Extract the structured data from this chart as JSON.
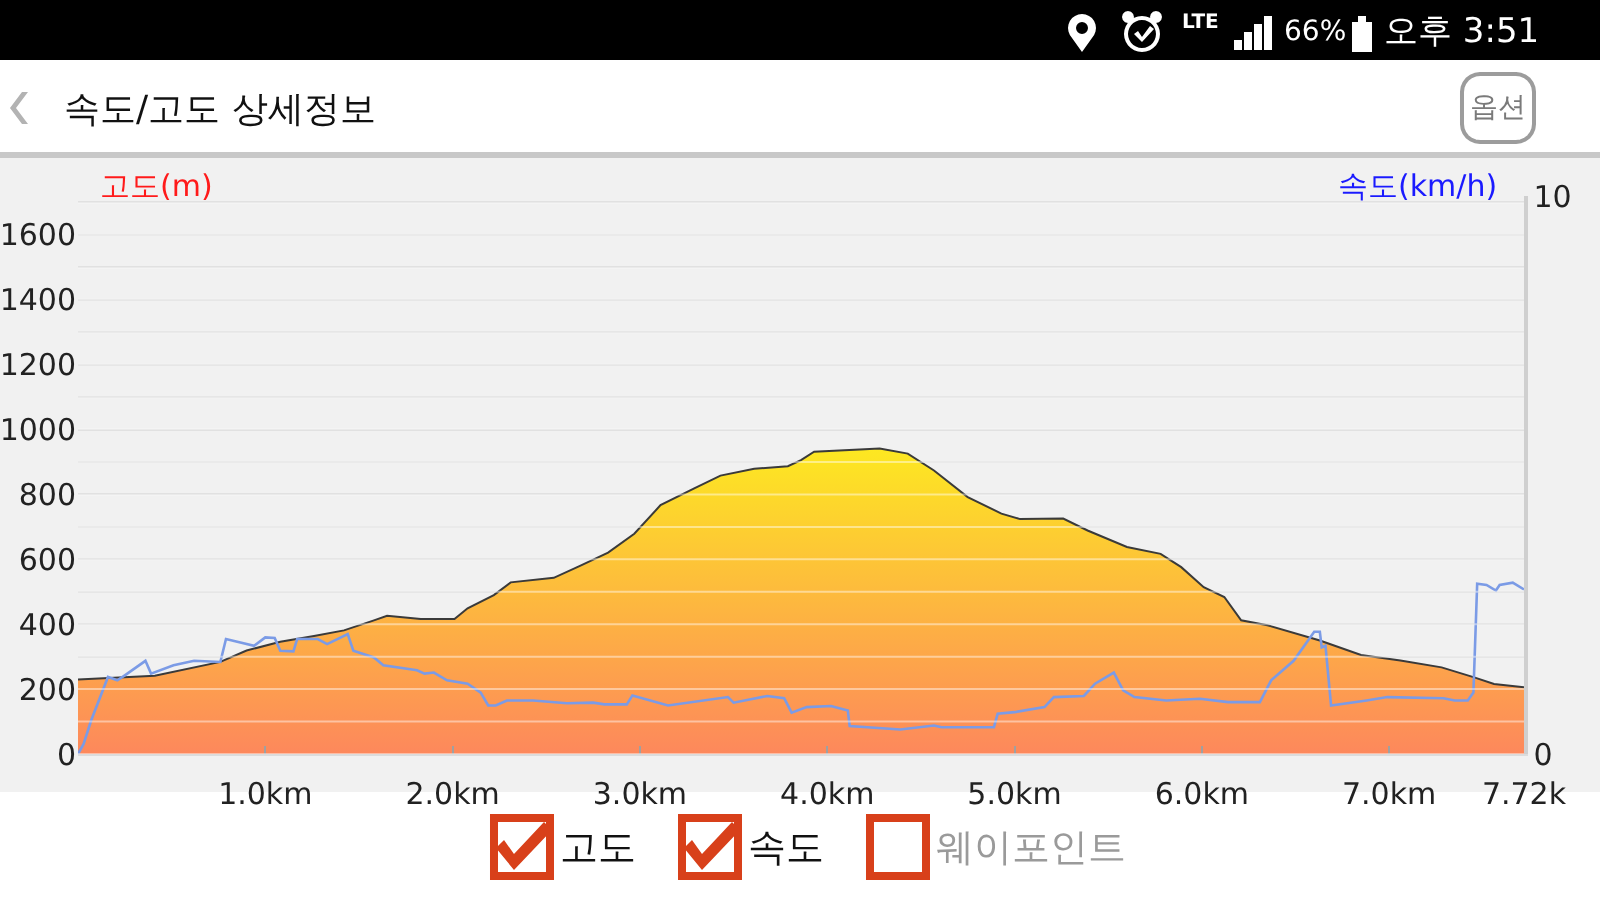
{
  "chart_data": {
    "type": "area",
    "title": "속도/고도 상세정보",
    "ylabel": "고도(m)",
    "y2label": "속도(km/h)",
    "annotations": [
      "LTE",
      "66%",
      "오후 3:51",
      "옵션",
      "고도",
      "속도",
      "웨이포인트"
    ],
    "series": [
      {
        "color": "#fdb846",
        "x": [
          0,
          0.41,
          0.76,
          0.9,
          1.08,
          1.26,
          1.42,
          1.58,
          1.65,
          1.83,
          2.01,
          2.08,
          2.22,
          2.31,
          2.54,
          2.68,
          2.83,
          2.97,
          3.11,
          3.29,
          3.43,
          3.61,
          3.79,
          3.86,
          3.93,
          4.28,
          4.43,
          4.57,
          4.75,
          4.93,
          5.03,
          5.26,
          5.39,
          5.6,
          5.78,
          5.89,
          6.01,
          6.12,
          6.21,
          6.35,
          6.63,
          6.85,
          7.06,
          7.28,
          7.45,
          7.56,
          7.72
        ],
        "values": [
          230,
          241,
          284,
          319,
          346,
          364,
          381,
          412,
          426,
          416,
          416,
          449,
          490,
          529,
          543,
          580,
          621,
          679,
          767,
          819,
          858,
          879,
          887,
          906,
          932,
          942,
          926,
          874,
          792,
          741,
          724,
          726,
          689,
          638,
          617,
          576,
          514,
          484,
          412,
          397,
          350,
          305,
          288,
          267,
          237,
          216,
          206
        ]
      },
      {
        "type": "line",
        "axis": "y2",
        "color": "#7b9be6",
        "x": [
          0,
          0.03,
          0.07,
          0.16,
          0.21,
          0.25,
          0.36,
          0.39,
          0.51,
          0.62,
          0.76,
          0.79,
          0.94,
          1.0,
          1.05,
          1.08,
          1.15,
          1.17,
          1.28,
          1.33,
          1.44,
          1.47,
          1.58,
          1.63,
          1.81,
          1.85,
          1.9,
          1.97,
          2.08,
          2.15,
          2.19,
          2.23,
          2.29,
          2.43,
          2.61,
          2.75,
          2.81,
          2.93,
          2.96,
          3.15,
          3.47,
          3.5,
          3.68,
          3.77,
          3.81,
          3.89,
          4.02,
          4.11,
          4.12,
          4.39,
          4.57,
          4.61,
          4.89,
          4.91,
          5.0,
          5.16,
          5.21,
          5.37,
          5.43,
          5.53,
          5.58,
          5.64,
          5.81,
          5.99,
          6.14,
          6.31,
          6.37,
          6.49,
          6.6,
          6.63,
          6.64,
          6.66,
          6.69,
          6.88,
          6.99,
          7.29,
          7.35,
          7.42,
          7.45,
          7.47,
          7.52,
          7.57,
          7.59,
          7.66,
          7.72
        ],
        "values": [
          0,
          0.18,
          0.6,
          1.38,
          1.32,
          1.41,
          1.67,
          1.44,
          1.59,
          1.67,
          1.65,
          2.06,
          1.94,
          2.09,
          2.08,
          1.85,
          1.84,
          2.06,
          2.06,
          1.97,
          2.15,
          1.85,
          1.73,
          1.59,
          1.5,
          1.44,
          1.46,
          1.32,
          1.26,
          1.1,
          0.87,
          0.87,
          0.96,
          0.96,
          0.91,
          0.92,
          0.89,
          0.89,
          1.05,
          0.87,
          1.02,
          0.92,
          1.04,
          1.0,
          0.74,
          0.84,
          0.86,
          0.78,
          0.5,
          0.44,
          0.51,
          0.48,
          0.48,
          0.72,
          0.75,
          0.84,
          1.02,
          1.04,
          1.26,
          1.46,
          1.14,
          1.02,
          0.96,
          0.99,
          0.93,
          0.93,
          1.32,
          1.67,
          2.19,
          2.19,
          1.91,
          1.94,
          0.87,
          0.96,
          1.02,
          1.0,
          0.96,
          0.96,
          1.1,
          3.05,
          3.03,
          2.93,
          3.03,
          3.07,
          2.95
        ]
      }
    ],
    "xlim": [
      0,
      7.72
    ],
    "xticks": [
      {
        "value": 1,
        "label": "1.0km"
      },
      {
        "value": 2,
        "label": "2.0km"
      },
      {
        "value": 3,
        "label": "3.0km"
      },
      {
        "value": 4,
        "label": "4.0km"
      },
      {
        "value": 5,
        "label": "5.0km"
      },
      {
        "value": 6,
        "label": "6.0km"
      },
      {
        "value": 7,
        "label": "7.0km"
      },
      {
        "value": 7.72,
        "label": "7.72k"
      }
    ],
    "ylim": [
      0,
      1720
    ],
    "yticks": [
      0,
      {
        "value": 100,
        "label": null
      },
      200,
      {
        "value": 300,
        "label": null
      },
      400,
      {
        "value": 500,
        "label": null
      },
      600,
      {
        "value": 700,
        "label": null
      },
      800,
      {
        "value": 900,
        "label": null
      },
      1000,
      {
        "value": 1100,
        "label": null
      },
      1200,
      {
        "value": 1300,
        "label": null
      },
      1400,
      {
        "value": 1500,
        "label": null
      },
      1600,
      {
        "value": 1700,
        "label": null
      }
    ],
    "y2lim": [
      0,
      10
    ],
    "y2ticks": [
      0,
      10
    ],
    "grid": "y"
  }
}
